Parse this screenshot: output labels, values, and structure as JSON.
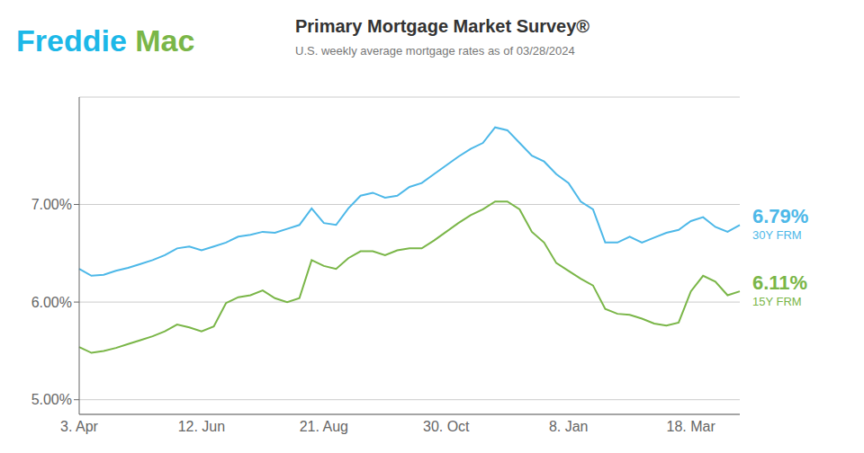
{
  "chart_data": {
    "type": "line",
    "title": "Primary Mortgage Market Survey®",
    "subtitle": "U.S. weekly average mortgage rates as of 03/28/2024",
    "categories": [
      "3. Apr",
      null,
      null,
      null,
      null,
      null,
      null,
      null,
      null,
      null,
      "12. Jun",
      null,
      null,
      null,
      null,
      null,
      null,
      null,
      null,
      null,
      "21. Aug",
      null,
      null,
      null,
      null,
      null,
      null,
      null,
      null,
      null,
      "30. Oct",
      null,
      null,
      null,
      null,
      null,
      null,
      null,
      null,
      null,
      "8. Jan",
      null,
      null,
      null,
      null,
      null,
      null,
      null,
      null,
      null,
      "18. Mar",
      null,
      null,
      null,
      null
    ],
    "series": [
      {
        "name": "30Y FRM",
        "color": "#4db8e8",
        "values": [
          6.34,
          6.27,
          6.28,
          6.32,
          6.35,
          6.39,
          6.43,
          6.48,
          6.55,
          6.57,
          6.53,
          6.57,
          6.61,
          6.67,
          6.69,
          6.72,
          6.71,
          6.75,
          6.79,
          6.96,
          6.81,
          6.79,
          6.96,
          7.09,
          7.12,
          7.07,
          7.09,
          7.18,
          7.22,
          7.31,
          7.4,
          7.49,
          7.57,
          7.63,
          7.79,
          7.76,
          7.63,
          7.5,
          7.44,
          7.31,
          7.22,
          7.03,
          6.95,
          6.61,
          6.61,
          6.67,
          6.61,
          6.66,
          6.71,
          6.74,
          6.83,
          6.87,
          6.77,
          6.72,
          6.79
        ]
      },
      {
        "name": "15Y FRM",
        "color": "#7ab648",
        "values": [
          5.54,
          5.48,
          5.5,
          5.53,
          5.57,
          5.61,
          5.65,
          5.7,
          5.77,
          5.74,
          5.7,
          5.75,
          5.99,
          6.05,
          6.07,
          6.12,
          6.04,
          6.0,
          6.04,
          6.43,
          6.37,
          6.34,
          6.45,
          6.52,
          6.52,
          6.48,
          6.53,
          6.55,
          6.55,
          6.63,
          6.72,
          6.81,
          6.89,
          6.95,
          7.03,
          7.03,
          6.95,
          6.72,
          6.61,
          6.4,
          6.32,
          6.24,
          6.17,
          5.93,
          5.88,
          5.87,
          5.83,
          5.78,
          5.76,
          5.79,
          6.11,
          6.27,
          6.21,
          6.07,
          6.11
        ]
      }
    ],
    "ylim": [
      4.85,
      8.1
    ],
    "yticks": [
      {
        "value": 5.0,
        "label": "5.00%"
      },
      {
        "value": 6.0,
        "label": "6.00%"
      },
      {
        "value": 7.0,
        "label": "7.00%"
      }
    ],
    "grid": true,
    "annotations": [
      {
        "text": "Freddie",
        "color": "#1cb8e8"
      },
      {
        "text": " Mac",
        "color": "#7ab648"
      },
      {
        "text": "6.79%",
        "series": "30Y FRM"
      },
      {
        "text": "6.11%",
        "series": "15Y FRM"
      }
    ]
  }
}
